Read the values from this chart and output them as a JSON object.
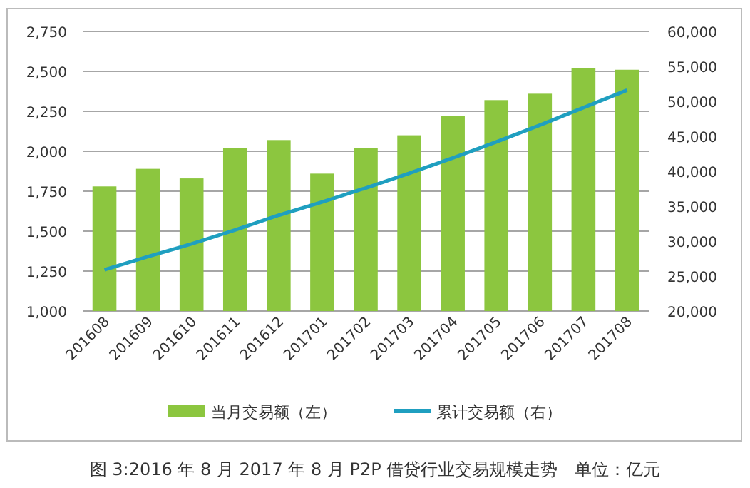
{
  "chart_data": {
    "type": "bar",
    "title": "图 3:2016 年 8 月 2017 年 8 月 P2P 借贷行业交易规模走势　单位：亿元",
    "categories": [
      "201608",
      "201609",
      "201610",
      "201611",
      "201612",
      "201701",
      "201702",
      "201703",
      "201704",
      "201705",
      "201706",
      "201707",
      "201708"
    ],
    "series": [
      {
        "name": "当月交易额（左）",
        "color": "#8cc63f",
        "values": [
          1780,
          1890,
          1830,
          2020,
          2070,
          1860,
          2020,
          2100,
          2220,
          2320,
          2360,
          2520,
          2510
        ]
      },
      {
        "name": "累计交易额（右）",
        "type": "line",
        "axis": "y2",
        "color": "#1f9fc0",
        "values": [
          25900,
          27800,
          29600,
          31600,
          33700,
          35600,
          37600,
          39700,
          41900,
          44200,
          46600,
          49100,
          51600
        ]
      }
    ],
    "ylim": [
      1000,
      2750
    ],
    "yticks": [
      {
        "value": 1000,
        "label": "1,000"
      },
      {
        "value": 1250,
        "label": "1,250"
      },
      {
        "value": 1500,
        "label": "1,500"
      },
      {
        "value": 1750,
        "label": "1,750"
      },
      {
        "value": 2000,
        "label": "2,000"
      },
      {
        "value": 2250,
        "label": "2,250"
      },
      {
        "value": 2500,
        "label": "2,500"
      },
      {
        "value": 2750,
        "label": "2,750"
      }
    ],
    "y2lim": [
      20000,
      60000
    ],
    "y2ticks": [
      {
        "value": 20000,
        "label": "20,000"
      },
      {
        "value": 25000,
        "label": "25,000"
      },
      {
        "value": 30000,
        "label": "30,000"
      },
      {
        "value": 35000,
        "label": "35,000"
      },
      {
        "value": 40000,
        "label": "40,000"
      },
      {
        "value": 45000,
        "label": "45,000"
      },
      {
        "value": 50000,
        "label": "50,000"
      },
      {
        "value": 55000,
        "label": "55,000"
      },
      {
        "value": 60000,
        "label": "60,000"
      }
    ],
    "grid": "y",
    "legend": "bottom",
    "marker": "none"
  }
}
